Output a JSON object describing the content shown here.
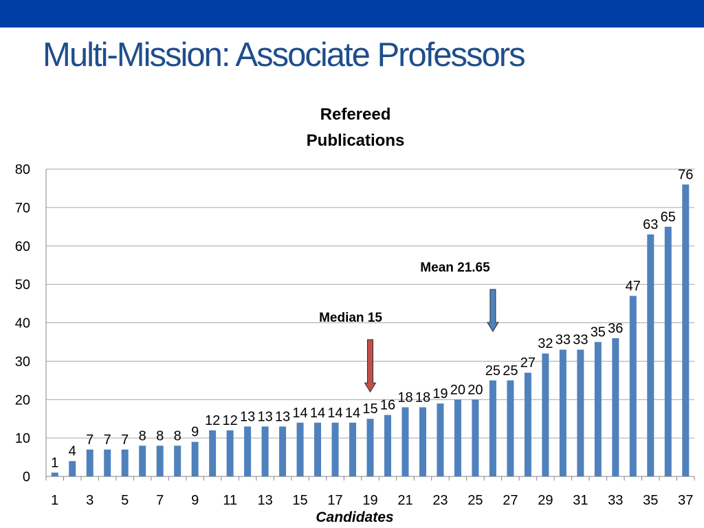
{
  "slide": {
    "title": "Multi-Mission: Associate Professors",
    "band_color": "#003DA5",
    "title_color": "#1F4E8C"
  },
  "chart_data": {
    "type": "bar",
    "title_lines": [
      "Refereed",
      "Publications"
    ],
    "xlabel": "Candidates",
    "ylabel": "",
    "ylim": [
      0,
      80
    ],
    "yticks": [
      0,
      10,
      20,
      30,
      40,
      50,
      60,
      70,
      80
    ],
    "xtick_labels": [
      "1",
      "3",
      "5",
      "7",
      "9",
      "11",
      "13",
      "15",
      "17",
      "19",
      "21",
      "23",
      "25",
      "27",
      "29",
      "31",
      "33",
      "35",
      "37"
    ],
    "categories": [
      1,
      2,
      3,
      4,
      5,
      6,
      7,
      8,
      9,
      10,
      11,
      12,
      13,
      14,
      15,
      16,
      17,
      18,
      19,
      20,
      21,
      22,
      23,
      24,
      25,
      26,
      27,
      28,
      29,
      30,
      31,
      32,
      33,
      34,
      35,
      36,
      37
    ],
    "values": [
      1,
      4,
      7,
      7,
      7,
      8,
      8,
      8,
      9,
      12,
      12,
      13,
      13,
      13,
      14,
      14,
      14,
      14,
      15,
      16,
      18,
      18,
      19,
      20,
      20,
      25,
      25,
      27,
      32,
      33,
      33,
      35,
      36,
      47,
      63,
      65,
      76
    ],
    "bar_color": "#4F81BD",
    "grid": true,
    "annotations": [
      {
        "text": "Median 15",
        "candidate": 19,
        "arrow_color": "#C0504D"
      },
      {
        "text": "Mean 21.65",
        "candidate": 26,
        "arrow_color": "#4F81BD"
      }
    ]
  }
}
